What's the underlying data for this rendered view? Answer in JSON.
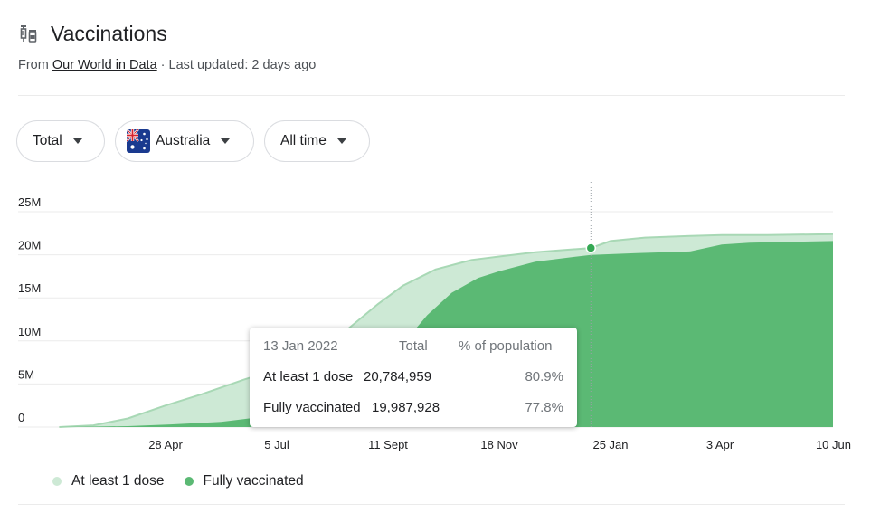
{
  "header": {
    "title": "Vaccinations",
    "icon": "syringe-vial-icon",
    "source_prefix": "From ",
    "source_link": "Our World in Data",
    "source_suffix": " · Last updated: 2 days ago"
  },
  "filters": [
    {
      "label": "Total"
    },
    {
      "label": "Australia",
      "icon": "australia-flag-icon"
    },
    {
      "label": "All time"
    }
  ],
  "colors": {
    "light_series": "#cde9d5",
    "dark_series": "#5bb974",
    "light_line": "#a8d8b5",
    "marker": "#34a853",
    "grid": "#ebebeb",
    "axis_text": "#202124"
  },
  "chart_data": {
    "type": "area",
    "x_ticks": [
      "28 Apr",
      "5 Jul",
      "11 Sept",
      "18 Nov",
      "25 Jan",
      "3 Apr",
      "10 Jun"
    ],
    "y_ticks": [
      "0",
      "5M",
      "10M",
      "15M",
      "20M",
      "25M"
    ],
    "ylim": [
      0,
      25000000
    ],
    "x_range": [
      "2021-02-22",
      "2022-06-10"
    ],
    "grid": true,
    "series": [
      {
        "name": "At least 1 dose",
        "points": [
          [
            "2021-02-22",
            0
          ],
          [
            "2021-03-15",
            200000
          ],
          [
            "2021-04-05",
            1000000
          ],
          [
            "2021-04-28",
            2500000
          ],
          [
            "2021-05-20",
            3800000
          ],
          [
            "2021-06-15",
            5500000
          ],
          [
            "2021-07-05",
            6700000
          ],
          [
            "2021-07-25",
            8500000
          ],
          [
            "2021-08-15",
            11000000
          ],
          [
            "2021-09-05",
            14300000
          ],
          [
            "2021-09-20",
            16400000
          ],
          [
            "2021-10-10",
            18300000
          ],
          [
            "2021-11-01",
            19400000
          ],
          [
            "2021-11-18",
            19800000
          ],
          [
            "2021-12-10",
            20300000
          ],
          [
            "2022-01-13",
            20784959
          ],
          [
            "2022-01-25",
            21600000
          ],
          [
            "2022-02-15",
            22000000
          ],
          [
            "2022-03-15",
            22200000
          ],
          [
            "2022-04-03",
            22300000
          ],
          [
            "2022-05-01",
            22300000
          ],
          [
            "2022-06-10",
            22400000
          ]
        ]
      },
      {
        "name": "Fully vaccinated",
        "points": [
          [
            "2021-02-22",
            0
          ],
          [
            "2021-04-05",
            100000
          ],
          [
            "2021-05-01",
            300000
          ],
          [
            "2021-06-01",
            600000
          ],
          [
            "2021-07-05",
            1400000
          ],
          [
            "2021-08-01",
            3000000
          ],
          [
            "2021-08-25",
            5500000
          ],
          [
            "2021-09-15",
            8500000
          ],
          [
            "2021-10-05",
            13000000
          ],
          [
            "2021-10-20",
            15600000
          ],
          [
            "2021-11-05",
            17300000
          ],
          [
            "2021-11-18",
            18100000
          ],
          [
            "2021-12-10",
            19200000
          ],
          [
            "2022-01-13",
            19987928
          ],
          [
            "2022-02-10",
            20200000
          ],
          [
            "2022-03-15",
            20400000
          ],
          [
            "2022-04-03",
            21200000
          ],
          [
            "2022-04-20",
            21400000
          ],
          [
            "2022-05-15",
            21500000
          ],
          [
            "2022-06-10",
            21600000
          ]
        ]
      }
    ],
    "hover": {
      "date": "2022-01-13",
      "value": 20784959
    }
  },
  "tooltip": {
    "date": "13 Jan 2022",
    "col_total": "Total",
    "col_pct": "% of population",
    "rows": [
      {
        "label": "At least 1 dose",
        "total": "20,784,959",
        "pct": "80.9%"
      },
      {
        "label": "Fully vaccinated",
        "total": "19,987,928",
        "pct": "77.8%"
      }
    ]
  },
  "legend": [
    {
      "label": "At least 1 dose"
    },
    {
      "label": "Fully vaccinated"
    }
  ]
}
